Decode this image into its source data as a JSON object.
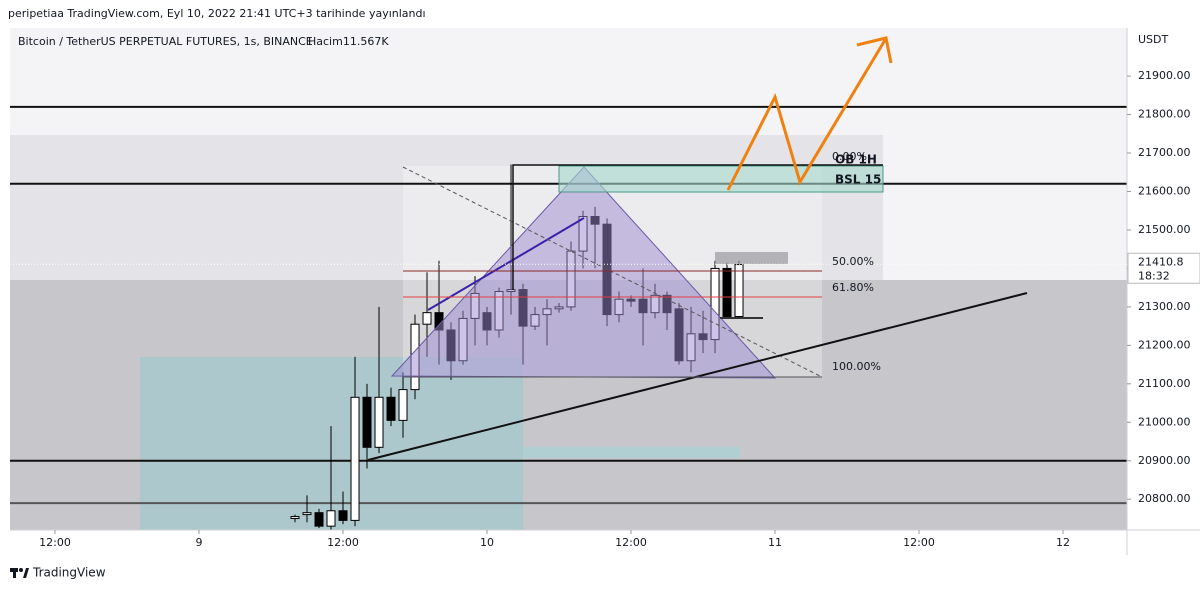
{
  "header": {
    "text": "peripetiaa TradingView.com, Eyl 10, 2022 21:41 UTC+3 tarihinde yayınlandı"
  },
  "footer": {
    "brand": "TradingView"
  },
  "chart_data": {
    "type": "candlestick",
    "title": "Bitcoin / TetherUS PERPETUAL FUTURES, 1s, BINANCE",
    "volume_label": "Hacim11.567K",
    "y_unit": "USDT",
    "x": [
      32,
      33,
      34,
      35,
      36,
      37,
      38,
      39,
      40,
      41,
      42,
      43,
      44,
      45,
      46,
      47,
      48,
      49,
      50,
      51,
      52,
      53,
      54,
      55,
      56,
      57,
      58,
      59,
      60,
      61,
      62,
      63,
      64,
      65,
      66,
      67,
      68,
      69
    ],
    "open": [
      20750,
      20760,
      20765,
      20730,
      20770,
      20745,
      21065,
      20935,
      21065,
      21005,
      21085,
      21255,
      21285,
      21240,
      21160,
      21270,
      21285,
      21240,
      21340,
      21345,
      21250,
      21280,
      21295,
      21300,
      21445,
      21535,
      21515,
      21280,
      21320,
      21320,
      21285,
      21330,
      21295,
      21160,
      21230,
      21215,
      21400,
      21275
    ],
    "high": [
      20760,
      20810,
      20775,
      20990,
      20820,
      21170,
      21100,
      21300,
      21090,
      21130,
      21280,
      21390,
      21420,
      21260,
      21290,
      21380,
      21300,
      21350,
      21670,
      21360,
      21300,
      21320,
      21310,
      21470,
      21550,
      21560,
      21530,
      21340,
      21330,
      21400,
      21360,
      21340,
      21310,
      21300,
      21290,
      21420,
      21415,
      21420
    ],
    "low": [
      20740,
      20740,
      20725,
      20720,
      20735,
      20730,
      20880,
      20920,
      20990,
      20960,
      21060,
      21170,
      21150,
      21110,
      21150,
      21200,
      21200,
      21220,
      21280,
      21150,
      21240,
      21200,
      21285,
      21290,
      21400,
      21400,
      21250,
      21260,
      21300,
      21200,
      21270,
      21240,
      21150,
      21130,
      21180,
      21180,
      21270,
      21270
    ],
    "close": [
      20755,
      20765,
      20730,
      20770,
      20745,
      21065,
      20935,
      21065,
      21005,
      21085,
      21255,
      21285,
      21240,
      21160,
      21270,
      21335,
      21240,
      21340,
      21345,
      21250,
      21280,
      21295,
      21300,
      21445,
      21535,
      21515,
      21280,
      21320,
      21315,
      21285,
      21330,
      21285,
      21160,
      21230,
      21215,
      21400,
      21275,
      21410
    ],
    "up_color": "#ffffff",
    "down_color": "#000000",
    "xlim": [
      8.25,
      101.33
    ],
    "xticks": [
      {
        "value": 12,
        "label": "12:00"
      },
      {
        "value": 24,
        "label": "9"
      },
      {
        "value": 36,
        "label": "12:00"
      },
      {
        "value": 48,
        "label": "10"
      },
      {
        "value": 60,
        "label": "12:00"
      },
      {
        "value": 72,
        "label": "11"
      },
      {
        "value": 84,
        "label": "12:00"
      },
      {
        "value": 96,
        "label": "12"
      }
    ],
    "ylim": [
      20720,
      22025
    ],
    "yticks": [
      {
        "value": 20800,
        "label": "20800.00"
      },
      {
        "value": 20900,
        "label": "20900.00"
      },
      {
        "value": 21000,
        "label": "21000.00"
      },
      {
        "value": 21100,
        "label": "21100.00"
      },
      {
        "value": 21200,
        "label": "21200.00"
      },
      {
        "value": 21300,
        "label": "21300.00"
      },
      {
        "value": 21400,
        "label": "21400.00"
      },
      {
        "value": 21500,
        "label": "21500.00"
      },
      {
        "value": 21600,
        "label": "21600.00"
      },
      {
        "value": 21700,
        "label": "21700.00"
      },
      {
        "value": 21800,
        "label": "21800.00"
      },
      {
        "value": 21900,
        "label": "21900.00"
      }
    ],
    "last_price": 21410.8,
    "countdown": "18:32",
    "levels": [
      21820,
      21620,
      20900,
      20790
    ],
    "annotations": [
      "0.00%",
      "50.00%",
      "61.80%",
      "100.00%",
      "OB 1H",
      "BSL 15"
    ]
  }
}
